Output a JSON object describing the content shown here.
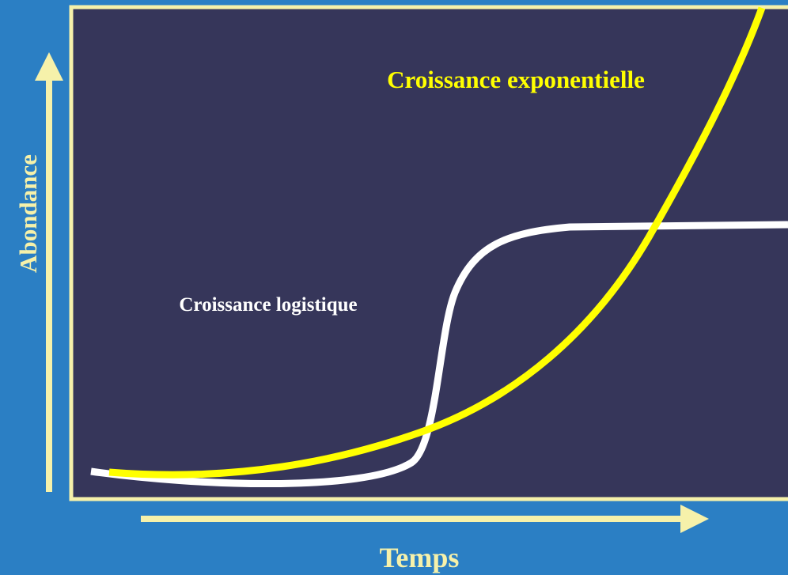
{
  "labels": {
    "exponential": "Croissance exponentielle",
    "logistic": "Croissance logistique",
    "y_axis": "Abondance",
    "x_axis": "Temps"
  }
}
